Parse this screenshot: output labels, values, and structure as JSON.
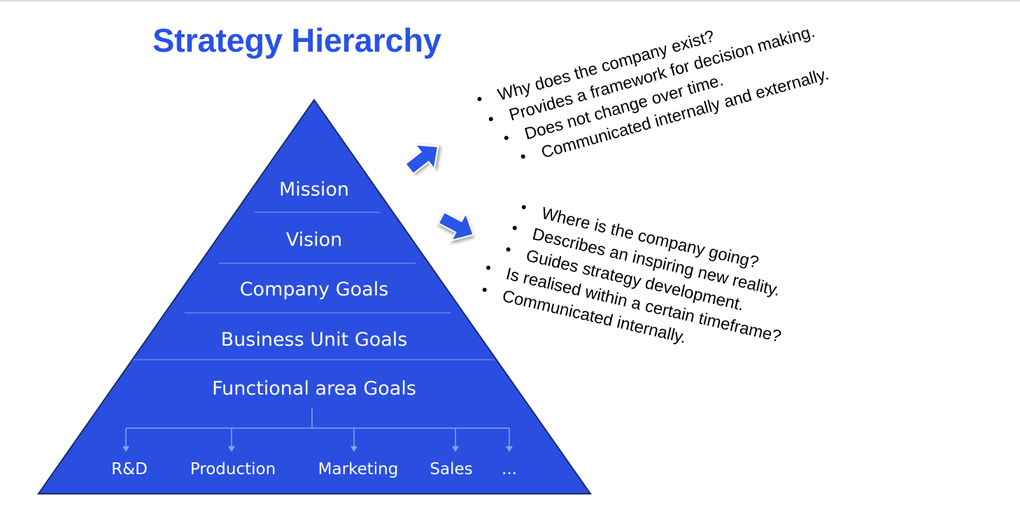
{
  "title": "Strategy Hierarchy",
  "pyramid": {
    "tiers": [
      "Mission",
      "Vision",
      "Company Goals",
      "Business Unit Goals",
      "Functional area Goals"
    ],
    "functional_areas": [
      "R&D",
      "Production",
      "Marketing",
      "Sales",
      "..."
    ]
  },
  "mission_points": [
    "Why does the company exist?",
    "Provides a framework for decision making.",
    "Does not change over time.",
    "Communicated internally and externally."
  ],
  "vision_points": [
    "Where is the company going?",
    "Describes an inspiring new reality.",
    "Guides strategy development.",
    "Is realised within a certain timeframe?",
    "Communicated internally."
  ],
  "colors": {
    "title": "#2752e8",
    "pyramid_fill": "#2a4ee0",
    "pyramid_stroke": "#1a2a66",
    "divider": "#8ea2ec",
    "arrow_fill": "#2b55e6"
  }
}
